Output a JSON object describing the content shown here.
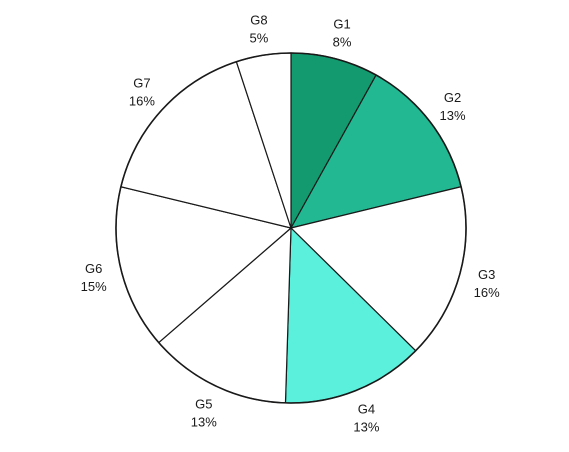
{
  "chart_data": {
    "type": "pie",
    "title": "",
    "start": "12 o'clock",
    "direction": "clockwise",
    "slices": [
      {
        "label": "G1",
        "value": 8,
        "pct_label": "8%",
        "color": "#139a6e"
      },
      {
        "label": "G2",
        "value": 13,
        "pct_label": "13%",
        "color": "#22b891"
      },
      {
        "label": "G3",
        "value": 16,
        "pct_label": "16%",
        "color": "#ffffff"
      },
      {
        "label": "G4",
        "value": 13,
        "pct_label": "13%",
        "color": "#5af0dc"
      },
      {
        "label": "G5",
        "value": 13,
        "pct_label": "13%",
        "color": "#ffffff"
      },
      {
        "label": "G6",
        "value": 15,
        "pct_label": "15%",
        "color": "#ffffff"
      },
      {
        "label": "G7",
        "value": 16,
        "pct_label": "16%",
        "color": "#ffffff"
      },
      {
        "label": "G8",
        "value": 5,
        "pct_label": "5%",
        "color": "#ffffff"
      }
    ]
  }
}
